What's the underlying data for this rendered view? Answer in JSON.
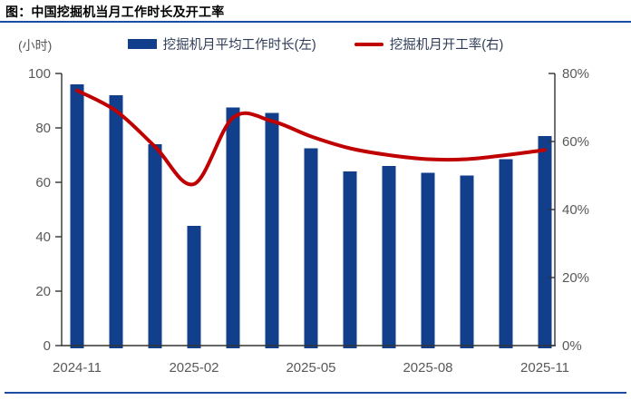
{
  "page": {
    "title": "图：中国挖掘机当月工作时长及开工率"
  },
  "colors": {
    "bar": "#123f8c",
    "line": "#c00000",
    "rule": "#1c4da1",
    "axis": "#333333",
    "tick_text": "#595959"
  },
  "chart_data": {
    "type": "bar",
    "title": "中国挖掘机当月工作时长及开工率",
    "categories": [
      "2024-11",
      "2024-12",
      "2025-01",
      "2025-02",
      "2025-03",
      "2025-04",
      "2025-05",
      "2025-06",
      "2025-07",
      "2025-08",
      "2025-09",
      "2025-10",
      "2025-11"
    ],
    "series": [
      {
        "name": "挖掘机月平均工作时长(左)",
        "type": "bar",
        "axis": "left",
        "unit": "小时",
        "values": [
          96,
          92,
          74,
          44,
          87.5,
          85.5,
          72.5,
          64,
          66,
          63.5,
          62.5,
          68.5,
          77
        ]
      },
      {
        "name": "挖掘机月开工率(右)",
        "type": "line",
        "axis": "right",
        "unit": "%",
        "values": [
          75,
          69,
          58.5,
          47.5,
          67,
          66,
          61.5,
          58,
          56,
          54.8,
          54.8,
          56,
          57.5
        ]
      }
    ],
    "left_axis": {
      "label": "(小时)",
      "min": 0,
      "max": 100,
      "ticks": [
        0,
        20,
        40,
        60,
        80,
        100
      ]
    },
    "right_axis": {
      "min": 0,
      "max": 80,
      "ticks": [
        "0%",
        "20%",
        "40%",
        "60%",
        "80%"
      ]
    },
    "x_tick_labels": [
      "2024-11",
      "2025-02",
      "2025-05",
      "2025-08",
      "2025-11"
    ],
    "x_tick_indices": [
      0,
      3,
      6,
      9,
      12
    ],
    "legend_position": "top",
    "grid": false
  }
}
